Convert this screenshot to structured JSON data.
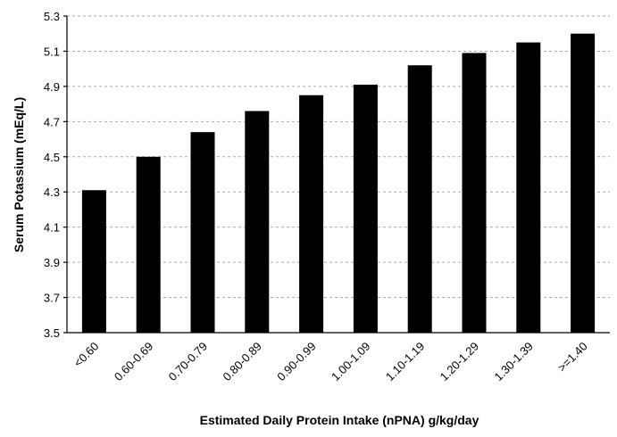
{
  "chart_data": {
    "type": "bar",
    "x_label": "Estimated Daily Protein Intake (nPNA) g/kg/day",
    "y_label": "Serum Potassium (mEq/L)",
    "categories": [
      "<0.60",
      "0.60-0.69",
      "0.70-0.79",
      "0.80-0.89",
      "0.90-0.99",
      "1.00-1.09",
      "1.10-1.19",
      "1.20-1.29",
      "1.30-1.39",
      ">=1.40"
    ],
    "values": [
      4.31,
      4.5,
      4.64,
      4.76,
      4.85,
      4.91,
      5.02,
      5.09,
      5.15,
      5.2
    ],
    "color": "#000000",
    "ylim": [
      3.5,
      5.3
    ],
    "yticks": [
      3.5,
      3.7,
      3.9,
      4.1,
      4.3,
      4.5,
      4.7,
      4.9,
      5.1,
      5.3
    ],
    "grid": true
  }
}
